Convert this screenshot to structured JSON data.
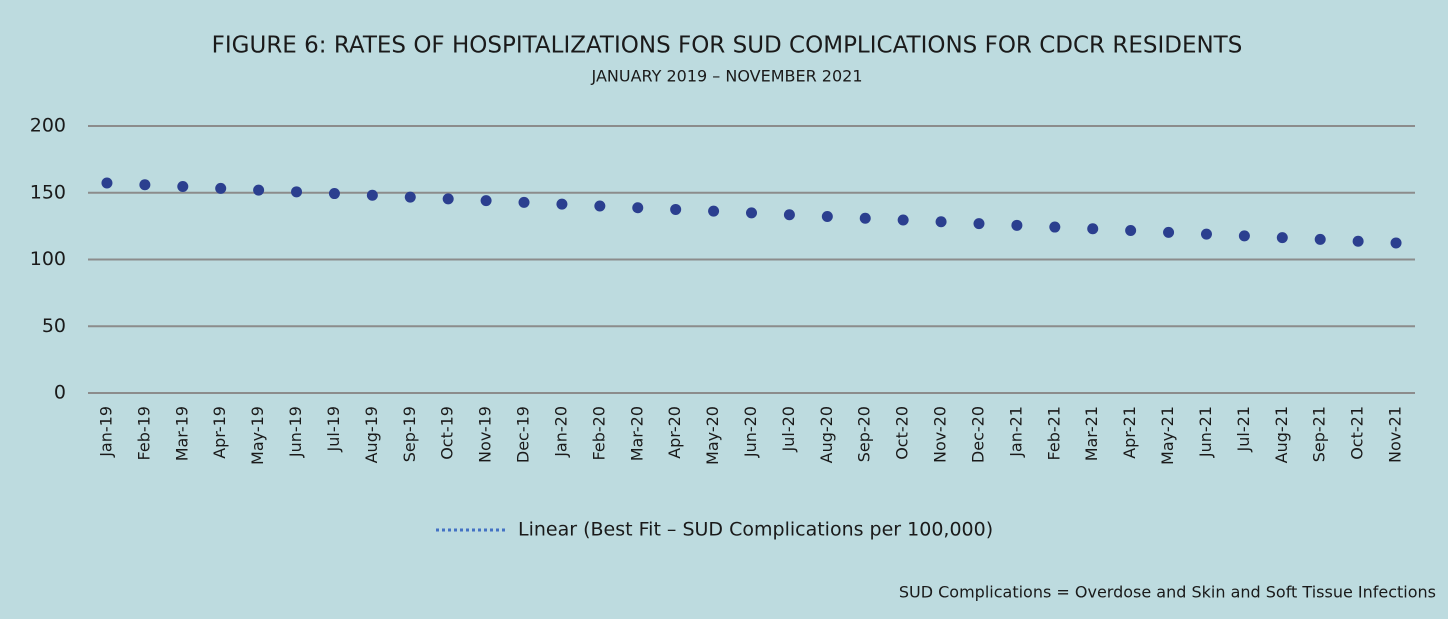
{
  "chart_data": {
    "type": "scatter",
    "title": "FIGURE 6: RATES OF HOSPITALIZATIONS FOR SUD COMPLICATIONS FOR CDCR RESIDENTS",
    "subtitle": "JANUARY 2019 – NOVEMBER 2021",
    "note": "SUD Complications = Overdose and Skin and Soft Tissue Infections",
    "categories": [
      "Jan-19",
      "Feb-19",
      "Mar-19",
      "Apr-19",
      "May-19",
      "Jun-19",
      "Jul-19",
      "Aug-19",
      "Sep-19",
      "Oct-19",
      "Nov-19",
      "Dec-19",
      "Jan-20",
      "Feb-20",
      "Mar-20",
      "Apr-20",
      "May-20",
      "Jun-20",
      "Jul-20",
      "Aug-20",
      "Sep-20",
      "Oct-20",
      "Nov-20",
      "Dec-20",
      "Jan-21",
      "Feb-21",
      "Mar-21",
      "Apr-21",
      "May-21",
      "Jun-21",
      "Jul-21",
      "Aug-21",
      "Sep-21",
      "Oct-21",
      "Nov-21"
    ],
    "series": [
      {
        "name": "Linear (Best Fit – SUD Complications per 100,000)",
        "color": "#2b3f8f",
        "legend_color": "#4472c4",
        "values": [
          157.3,
          156.0,
          154.7,
          153.3,
          152.0,
          150.7,
          149.4,
          148.1,
          146.7,
          145.4,
          144.1,
          142.8,
          141.5,
          140.1,
          138.8,
          137.5,
          136.2,
          134.9,
          133.5,
          132.2,
          130.9,
          129.6,
          128.3,
          126.9,
          125.6,
          124.3,
          123.0,
          121.7,
          120.3,
          119.0,
          117.7,
          116.4,
          115.1,
          113.7,
          112.4
        ]
      }
    ],
    "ylim": [
      0,
      200
    ],
    "yticks": [
      0,
      50,
      100,
      150,
      200
    ],
    "grid": true,
    "legend": "bottom"
  }
}
